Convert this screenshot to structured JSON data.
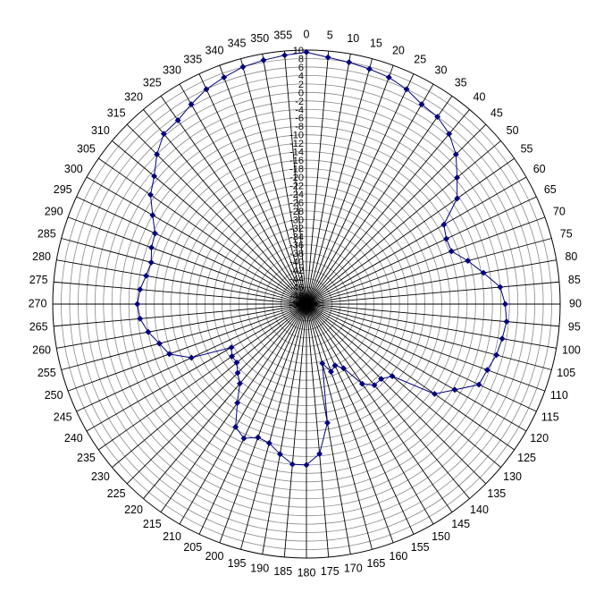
{
  "chart_data": {
    "type": "polar_line",
    "title": "",
    "angular_axis": {
      "unit": "degrees",
      "direction": "clockwise",
      "zero_at": "top",
      "step": 5,
      "tick_labels": [
        "0",
        "5",
        "10",
        "15",
        "20",
        "25",
        "30",
        "35",
        "40",
        "45",
        "50",
        "55",
        "60",
        "65",
        "70",
        "75",
        "80",
        "85",
        "90",
        "95",
        "100",
        "105",
        "110",
        "115",
        "120",
        "125",
        "130",
        "135",
        "140",
        "145",
        "150",
        "155",
        "160",
        "165",
        "170",
        "175",
        "180",
        "185",
        "190",
        "195",
        "200",
        "205",
        "210",
        "215",
        "220",
        "225",
        "230",
        "235",
        "240",
        "245",
        "250",
        "255",
        "260",
        "265",
        "270",
        "275",
        "280",
        "285",
        "290",
        "295",
        "300",
        "305",
        "310",
        "315",
        "320",
        "325",
        "330",
        "335",
        "340",
        "345",
        "350",
        "355"
      ]
    },
    "radial_axis": {
      "min": -50,
      "max": 10,
      "step": 2,
      "tick_labels": [
        "-50",
        "-48",
        "-46",
        "-44",
        "-42",
        "-40",
        "-38",
        "-36",
        "-34",
        "-32",
        "-30",
        "-28",
        "-26",
        "-24",
        "-22",
        "-20",
        "-18",
        "-16",
        "-14",
        "-12",
        "-10",
        "-8",
        "-6",
        "-4",
        "-2",
        "0",
        "2",
        "4",
        "6",
        "8",
        "10"
      ]
    },
    "grid": true,
    "series": [
      {
        "color": "#00007f",
        "marker": "diamond",
        "points": [
          {
            "angle": 0,
            "r": 9.5
          },
          {
            "angle": 5,
            "r": 8.5
          },
          {
            "angle": 10,
            "r": 8.0
          },
          {
            "angle": 15,
            "r": 7.5
          },
          {
            "angle": 20,
            "r": 7.0
          },
          {
            "angle": 25,
            "r": 6.0
          },
          {
            "angle": 30,
            "r": 4.5
          },
          {
            "angle": 35,
            "r": 4.0
          },
          {
            "angle": 40,
            "r": 2.5
          },
          {
            "angle": 45,
            "r": 0.0
          },
          {
            "angle": 50,
            "r": -3.5
          },
          {
            "angle": 55,
            "r": -6.5
          },
          {
            "angle": 60,
            "r": -12.5
          },
          {
            "angle": 65,
            "r": -13.5
          },
          {
            "angle": 70,
            "r": -13.5
          },
          {
            "angle": 75,
            "r": -10.5
          },
          {
            "angle": 80,
            "r": -7.5
          },
          {
            "angle": 85,
            "r": -4.0
          },
          {
            "angle": 90,
            "r": -3.0
          },
          {
            "angle": 95,
            "r": -2.5
          },
          {
            "angle": 100,
            "r": -3.0
          },
          {
            "angle": 105,
            "r": -3.5
          },
          {
            "angle": 110,
            "r": -4.5
          },
          {
            "angle": 115,
            "r": -5.0
          },
          {
            "angle": 120,
            "r": -9.5
          },
          {
            "angle": 125,
            "r": -13.0
          },
          {
            "angle": 130,
            "r": -23.5
          },
          {
            "angle": 135,
            "r": -25.0
          },
          {
            "angle": 140,
            "r": -25.0
          },
          {
            "angle": 145,
            "r": -27.0
          },
          {
            "angle": 150,
            "r": -32.5
          },
          {
            "angle": 155,
            "r": -34.0
          },
          {
            "angle": 160,
            "r": -33.0
          },
          {
            "angle": 165,
            "r": -35.5
          },
          {
            "angle": 170,
            "r": -21.5
          },
          {
            "angle": 175,
            "r": -14.5
          },
          {
            "angle": 180,
            "r": -12.0
          },
          {
            "angle": 185,
            "r": -12.0
          },
          {
            "angle": 190,
            "r": -14.0
          },
          {
            "angle": 195,
            "r": -16.0
          },
          {
            "angle": 200,
            "r": -16.5
          },
          {
            "angle": 205,
            "r": -15.0
          },
          {
            "angle": 210,
            "r": -16.5
          },
          {
            "angle": 215,
            "r": -21.5
          },
          {
            "angle": 220,
            "r": -25.5
          },
          {
            "angle": 225,
            "r": -27.0
          },
          {
            "angle": 230,
            "r": -28.5
          },
          {
            "angle": 235,
            "r": -28.5
          },
          {
            "angle": 240,
            "r": -29.5
          },
          {
            "angle": 245,
            "r": -20.0
          },
          {
            "angle": 250,
            "r": -15.5
          },
          {
            "angle": 255,
            "r": -14.0
          },
          {
            "angle": 260,
            "r": -12.0
          },
          {
            "angle": 265,
            "r": -10.5
          },
          {
            "angle": 270,
            "r": -10.0
          },
          {
            "angle": 275,
            "r": -10.5
          },
          {
            "angle": 280,
            "r": -11.5
          },
          {
            "angle": 285,
            "r": -12.0
          },
          {
            "angle": 290,
            "r": -11.0
          },
          {
            "angle": 295,
            "r": -10.5
          },
          {
            "angle": 300,
            "r": -8.0
          },
          {
            "angle": 305,
            "r": -5.0
          },
          {
            "angle": 310,
            "r": -3.0
          },
          {
            "angle": 315,
            "r": 0.0
          },
          {
            "angle": 320,
            "r": 2.5
          },
          {
            "angle": 325,
            "r": 3.0
          },
          {
            "angle": 330,
            "r": 4.5
          },
          {
            "angle": 335,
            "r": 6.0
          },
          {
            "angle": 340,
            "r": 7.0
          },
          {
            "angle": 345,
            "r": 8.0
          },
          {
            "angle": 350,
            "r": 8.5
          },
          {
            "angle": 355,
            "r": 9.0
          }
        ]
      }
    ]
  }
}
